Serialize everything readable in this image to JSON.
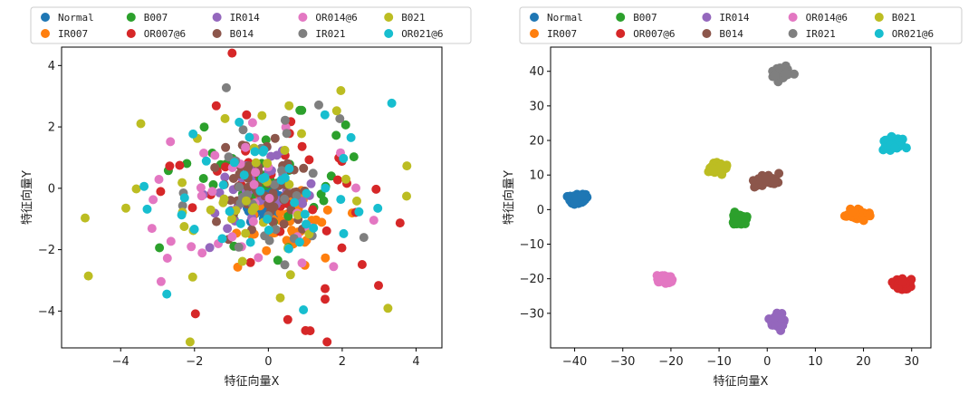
{
  "chart_data": [
    {
      "type": "scatter",
      "title": "",
      "xlabel": "特征向量X",
      "ylabel": "特征向量Y",
      "xlim": [
        -5.6,
        4.7
      ],
      "ylim": [
        -5.2,
        4.6
      ],
      "xticks": [
        -4,
        -2,
        0,
        2,
        4
      ],
      "yticks": [
        -4,
        -2,
        0,
        2,
        4
      ],
      "legend_position": "top",
      "series": [
        {
          "name": "Normal",
          "color": "#1f77b4",
          "center": [
            -0.1,
            -0.6
          ],
          "spread": [
            0.6,
            0.5
          ],
          "count": 45
        },
        {
          "name": "IR007",
          "color": "#ff7f0e",
          "center": [
            0.6,
            -0.9
          ],
          "spread": [
            1.3,
            1.1
          ],
          "count": 40
        },
        {
          "name": "B007",
          "color": "#2ca02c",
          "center": [
            0.2,
            0.3
          ],
          "spread": [
            2.2,
            2.0
          ],
          "count": 40
        },
        {
          "name": "OR007@6",
          "color": "#d62728",
          "center": [
            0.0,
            0.0
          ],
          "spread": [
            3.3,
            3.1
          ],
          "count": 45
        },
        {
          "name": "IR014",
          "color": "#9467bd",
          "center": [
            -0.3,
            -0.2
          ],
          "spread": [
            1.2,
            1.1
          ],
          "count": 40
        },
        {
          "name": "B014",
          "color": "#8c564b",
          "center": [
            -0.1,
            -0.2
          ],
          "spread": [
            1.4,
            1.3
          ],
          "count": 60
        },
        {
          "name": "OR014@6",
          "color": "#e377c2",
          "center": [
            -0.5,
            -0.4
          ],
          "spread": [
            2.8,
            2.6
          ],
          "count": 40
        },
        {
          "name": "IR021",
          "color": "#7f7f7f",
          "center": [
            0.1,
            0.4
          ],
          "spread": [
            3.0,
            2.6
          ],
          "count": 30
        },
        {
          "name": "B021",
          "color": "#bcbd22",
          "center": [
            -0.4,
            -0.5
          ],
          "spread": [
            3.5,
            3.2
          ],
          "count": 45
        },
        {
          "name": "OR021@6",
          "color": "#17becf",
          "center": [
            0.2,
            0.2
          ],
          "spread": [
            2.9,
            2.9
          ],
          "count": 45
        }
      ]
    },
    {
      "type": "scatter",
      "title": "",
      "xlabel": "特征向量X",
      "ylabel": "特征向量Y",
      "xlim": [
        -45,
        34
      ],
      "ylim": [
        -40,
        47
      ],
      "xticks": [
        -40,
        -30,
        -20,
        -10,
        0,
        10,
        20,
        30
      ],
      "yticks": [
        -30,
        -20,
        -10,
        0,
        10,
        20,
        30,
        40
      ],
      "legend_position": "top",
      "series": [
        {
          "name": "Normal",
          "color": "#1f77b4",
          "center": [
            -39.5,
            3.2
          ],
          "spread": [
            2.0,
            1.6
          ],
          "count": 45
        },
        {
          "name": "IR007",
          "color": "#ff7f0e",
          "center": [
            19.0,
            -1.5
          ],
          "spread": [
            2.2,
            1.6
          ],
          "count": 45
        },
        {
          "name": "B007",
          "color": "#2ca02c",
          "center": [
            -6.0,
            -3.0
          ],
          "spread": [
            1.6,
            1.6
          ],
          "count": 45
        },
        {
          "name": "OR007@6",
          "color": "#d62728",
          "center": [
            28.0,
            -21.5
          ],
          "spread": [
            2.2,
            2.0
          ],
          "count": 45
        },
        {
          "name": "IR014",
          "color": "#9467bd",
          "center": [
            2.2,
            -32.0
          ],
          "spread": [
            1.6,
            2.2
          ],
          "count": 45
        },
        {
          "name": "B014",
          "color": "#8c564b",
          "center": [
            -0.5,
            8.5
          ],
          "spread": [
            3.2,
            1.8
          ],
          "count": 45
        },
        {
          "name": "OR014@6",
          "color": "#e377c2",
          "center": [
            -21.5,
            -20.0
          ],
          "spread": [
            1.8,
            1.8
          ],
          "count": 45
        },
        {
          "name": "IR021",
          "color": "#7f7f7f",
          "center": [
            3.2,
            39.5
          ],
          "spread": [
            1.7,
            2.0
          ],
          "count": 45
        },
        {
          "name": "B021",
          "color": "#bcbd22",
          "center": [
            -10.2,
            12.2
          ],
          "spread": [
            1.8,
            1.8
          ],
          "count": 45
        },
        {
          "name": "OR021@6",
          "color": "#17becf",
          "center": [
            26.5,
            19.0
          ],
          "spread": [
            2.6,
            1.8
          ],
          "count": 45
        }
      ]
    }
  ]
}
